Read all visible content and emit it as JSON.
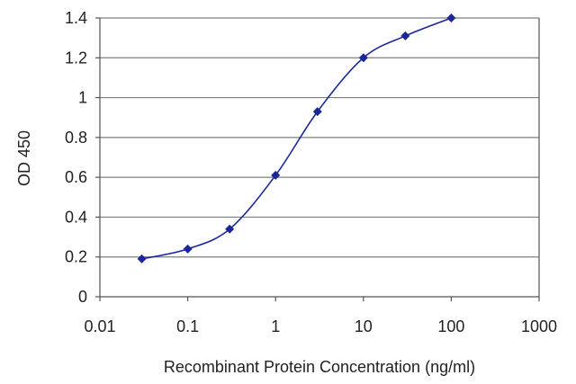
{
  "chart_data": {
    "type": "scatter",
    "x_scale": "log",
    "xlabel": "Recombinant Protein Concentration (ng/ml)",
    "ylabel": "OD 450",
    "xlim": [
      0.01,
      1000
    ],
    "ylim": [
      0,
      1.4
    ],
    "x_ticks": [
      0.01,
      0.1,
      1,
      10,
      100,
      1000
    ],
    "x_tick_labels": [
      "0.01",
      "0.1",
      "1",
      "10",
      "100",
      "1000"
    ],
    "y_ticks": [
      0,
      0.2,
      0.4,
      0.6,
      0.8,
      1,
      1.2,
      1.4
    ],
    "y_tick_labels": [
      "0",
      "0.2",
      "0.4",
      "0.6",
      "0.8",
      "1",
      "1.2",
      "1.4"
    ],
    "grid": "horizontal",
    "series": [
      {
        "x": [
          0.03,
          0.1,
          0.3,
          1,
          3,
          10,
          30,
          100
        ],
        "y": [
          0.19,
          0.24,
          0.34,
          0.61,
          0.93,
          1.2,
          1.31,
          1.4
        ],
        "curve": "smooth"
      }
    ],
    "colors": {
      "series": "#1a2799",
      "grid": "#7f7f7f",
      "axis": "#555555"
    }
  }
}
